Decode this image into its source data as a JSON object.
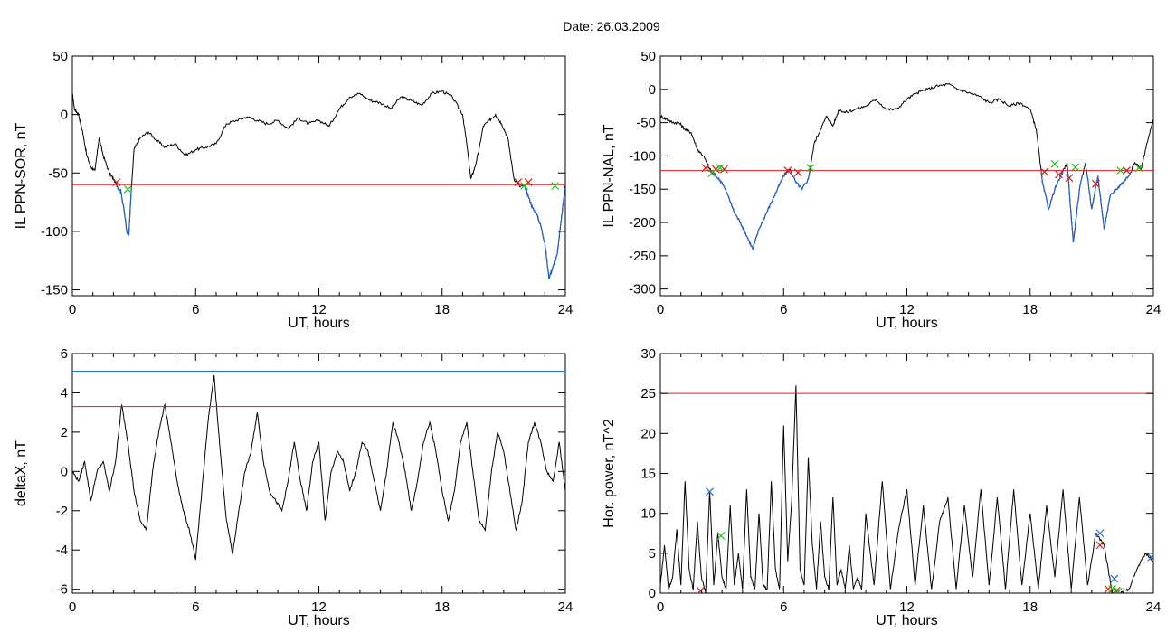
{
  "figure": {
    "title": "Date:  26.03.2009"
  },
  "chart_data": [
    {
      "id": "sor",
      "type": "line",
      "ylabel": "IL PPN-SOR, nT",
      "xlabel": "UT, hours",
      "xlim": [
        0,
        24
      ],
      "ylim": [
        -155,
        50
      ],
      "xticks": [
        0,
        6,
        12,
        18,
        24
      ],
      "yticks": [
        -150,
        -100,
        -50,
        0,
        50
      ],
      "thresholds": [
        {
          "value": -60,
          "color": "#e02020"
        }
      ],
      "colors": {
        "line": "#000000",
        "below": "#1f5fd0",
        "red_marks": "#d02020",
        "green_marks": "#20c020"
      },
      "series": [
        {
          "values_x": [
            0,
            0.1,
            0.3,
            0.5,
            0.7,
            0.9,
            1.1,
            1.3,
            1.5,
            1.8,
            2.0,
            2.2,
            2.35,
            2.5,
            2.65,
            2.75,
            2.85,
            3.0,
            3.3,
            3.7,
            4.1,
            4.5,
            5.0,
            5.5,
            6.0,
            6.5,
            7.0,
            7.5,
            8.0,
            8.5,
            9.0,
            9.5,
            10.0,
            10.5,
            11.0,
            11.5,
            12.0,
            12.5,
            13.0,
            13.5,
            14.0,
            14.5,
            15.0,
            15.5,
            16.0,
            16.5,
            17.0,
            17.5,
            18.0,
            18.5,
            19.0,
            19.2,
            19.4,
            19.6,
            19.8,
            20.0,
            20.3,
            20.6,
            20.9,
            21.2,
            21.5,
            21.8,
            22.0,
            22.2,
            22.4,
            22.6,
            22.8,
            23.0,
            23.2,
            23.4,
            23.6,
            23.8,
            24.0
          ],
          "values_y": [
            18,
            5,
            0,
            -15,
            -35,
            -45,
            -48,
            -20,
            -35,
            -50,
            -55,
            -62,
            -65,
            -80,
            -100,
            -103,
            -70,
            -30,
            -20,
            -15,
            -22,
            -28,
            -25,
            -35,
            -30,
            -28,
            -25,
            -8,
            -5,
            -2,
            -5,
            -8,
            -5,
            -12,
            -3,
            -8,
            -5,
            -10,
            5,
            15,
            18,
            12,
            10,
            5,
            15,
            12,
            8,
            18,
            20,
            15,
            0,
            -25,
            -55,
            -45,
            -30,
            -10,
            -5,
            0,
            -8,
            -20,
            -55,
            -62,
            -60,
            -70,
            -80,
            -85,
            -95,
            -110,
            -140,
            -130,
            -120,
            -90,
            -60
          ]
        }
      ],
      "markers": {
        "red_x": [
          [
            2.15,
            -58
          ],
          [
            21.7,
            -58
          ],
          [
            22.2,
            -58
          ]
        ],
        "green_x": [
          [
            2.7,
            -64
          ],
          [
            22.0,
            -61
          ],
          [
            23.5,
            -61
          ]
        ]
      }
    },
    {
      "id": "nal",
      "type": "line",
      "ylabel": "IL PPN-NAL, nT",
      "xlabel": "UT, hours",
      "xlim": [
        0,
        24
      ],
      "ylim": [
        -310,
        50
      ],
      "xticks": [
        0,
        6,
        12,
        18,
        24
      ],
      "yticks": [
        -300,
        -250,
        -200,
        -150,
        -100,
        -50,
        0,
        50
      ],
      "thresholds": [
        {
          "value": -122,
          "color": "#e02020"
        }
      ],
      "colors": {
        "line": "#000000",
        "below": "#1f5fd0",
        "red_marks": "#d02020",
        "green_marks": "#20c020"
      },
      "series": [
        {
          "values_x": [
            0,
            0.3,
            0.6,
            0.9,
            1.2,
            1.5,
            1.8,
            2.1,
            2.4,
            2.7,
            3.0,
            3.3,
            3.6,
            3.9,
            4.2,
            4.5,
            4.8,
            5.1,
            5.4,
            5.7,
            6.0,
            6.3,
            6.6,
            6.9,
            7.2,
            7.5,
            7.8,
            8.1,
            8.4,
            8.7,
            9.0,
            9.5,
            10.0,
            10.5,
            11.0,
            11.5,
            12.0,
            12.5,
            13.0,
            13.5,
            14.0,
            14.5,
            15.0,
            15.5,
            16.0,
            16.5,
            17.0,
            17.5,
            18.0,
            18.3,
            18.6,
            18.9,
            19.2,
            19.5,
            19.8,
            20.1,
            20.4,
            20.7,
            21.0,
            21.3,
            21.6,
            21.9,
            22.2,
            22.5,
            22.8,
            23.1,
            23.4,
            23.7,
            24.0
          ],
          "values_y": [
            -40,
            -45,
            -50,
            -50,
            -60,
            -65,
            -90,
            -100,
            -120,
            -130,
            -140,
            -160,
            -185,
            -200,
            -220,
            -240,
            -210,
            -190,
            -170,
            -150,
            -130,
            -120,
            -140,
            -150,
            -135,
            -80,
            -60,
            -40,
            -55,
            -30,
            -35,
            -30,
            -25,
            -15,
            -30,
            -30,
            -15,
            -5,
            0,
            5,
            8,
            0,
            -5,
            -10,
            -20,
            -15,
            -25,
            -20,
            -30,
            -60,
            -140,
            -180,
            -150,
            -130,
            -110,
            -230,
            -150,
            -110,
            -180,
            -130,
            -210,
            -160,
            -150,
            -140,
            -130,
            -110,
            -120,
            -80,
            -45
          ]
        }
      ],
      "markers": {
        "red_x": [
          [
            2.2,
            -118
          ],
          [
            2.7,
            -120
          ],
          [
            3.1,
            -120
          ],
          [
            6.2,
            -122
          ],
          [
            6.7,
            -125
          ],
          [
            18.7,
            -124
          ],
          [
            19.4,
            -128
          ],
          [
            19.9,
            -133
          ],
          [
            21.2,
            -142
          ],
          [
            22.7,
            -122
          ]
        ],
        "green_x": [
          [
            2.5,
            -126
          ],
          [
            2.9,
            -118
          ],
          [
            7.3,
            -118
          ],
          [
            19.2,
            -112
          ],
          [
            20.2,
            -117
          ],
          [
            22.4,
            -122
          ],
          [
            23.3,
            -118
          ]
        ]
      }
    },
    {
      "id": "deltax",
      "type": "line",
      "ylabel": "deltaX, nT",
      "xlabel": "UT, hours",
      "xlim": [
        0,
        24
      ],
      "ylim": [
        -6.2,
        6
      ],
      "xticks": [
        0,
        6,
        12,
        18,
        24
      ],
      "yticks": [
        -6,
        -4,
        -2,
        0,
        2,
        4,
        6
      ],
      "thresholds": [
        {
          "value": 5.1,
          "color": "#1f6fd0"
        },
        {
          "value": 3.3,
          "color": "#e02020"
        }
      ],
      "colors": {
        "line": "#000000"
      },
      "series": [
        {
          "values_x": [
            0,
            0.3,
            0.6,
            0.9,
            1.2,
            1.5,
            1.8,
            2.1,
            2.4,
            2.7,
            3.0,
            3.3,
            3.6,
            3.9,
            4.2,
            4.5,
            4.8,
            5.1,
            5.4,
            5.7,
            6.0,
            6.3,
            6.6,
            6.9,
            7.2,
            7.5,
            7.8,
            8.1,
            8.4,
            8.7,
            9.0,
            9.3,
            9.6,
            9.9,
            10.2,
            10.5,
            10.8,
            11.1,
            11.4,
            11.7,
            12.0,
            12.3,
            12.6,
            12.9,
            13.2,
            13.5,
            13.8,
            14.1,
            14.4,
            14.7,
            15.0,
            15.3,
            15.6,
            15.9,
            16.2,
            16.5,
            16.8,
            17.1,
            17.4,
            17.7,
            18.0,
            18.3,
            18.6,
            18.9,
            19.2,
            19.5,
            19.8,
            20.1,
            20.4,
            20.7,
            21.0,
            21.3,
            21.6,
            21.9,
            22.2,
            22.5,
            22.8,
            23.1,
            23.4,
            23.7,
            24.0
          ],
          "values_y": [
            0,
            -0.5,
            0.5,
            -1.5,
            0,
            0.5,
            -1,
            0.5,
            3.4,
            1.5,
            -1,
            -2.5,
            -3,
            0,
            2,
            3.4,
            1.5,
            -0.5,
            -2,
            -3,
            -4.5,
            -1,
            2.5,
            4.9,
            1,
            -2.5,
            -4.2,
            -2,
            0,
            1,
            3,
            0.5,
            -1,
            -1.5,
            -2,
            -0.5,
            1.5,
            -0.5,
            -2,
            0.5,
            1.5,
            -2.5,
            0,
            1,
            0.5,
            -1,
            0,
            1.5,
            1,
            -0.5,
            -2,
            0,
            2.5,
            1.5,
            0,
            -2,
            -0.5,
            1.5,
            2.5,
            1,
            -1,
            -2.5,
            -1,
            1.5,
            2.5,
            0,
            -2.5,
            -3,
            0,
            2,
            1,
            -1,
            -3,
            -1.5,
            1.5,
            2.5,
            1.5,
            0,
            -0.5,
            1.5,
            -1
          ]
        }
      ],
      "markers": {
        "red_x": [],
        "green_x": []
      }
    },
    {
      "id": "power",
      "type": "line",
      "ylabel": "Hor. power, nT^2",
      "xlabel": "UT, hours",
      "xlim": [
        0,
        24
      ],
      "ylim": [
        0,
        30
      ],
      "xticks": [
        0,
        6,
        12,
        18,
        24
      ],
      "yticks": [
        0,
        5,
        10,
        15,
        20,
        25,
        30
      ],
      "thresholds": [
        {
          "value": 25,
          "color": "#e02020"
        }
      ],
      "colors": {
        "line": "#000000",
        "red_marks": "#d02020",
        "green_marks": "#20c020",
        "blue_marks": "#1f6fd0"
      },
      "series": [
        {
          "values_x": [
            0,
            0.2,
            0.4,
            0.6,
            0.8,
            1.0,
            1.2,
            1.4,
            1.6,
            1.8,
            2.0,
            2.2,
            2.4,
            2.6,
            2.8,
            3.0,
            3.2,
            3.4,
            3.6,
            3.8,
            4.0,
            4.2,
            4.4,
            4.6,
            4.8,
            5.0,
            5.2,
            5.4,
            5.6,
            5.8,
            6.0,
            6.2,
            6.4,
            6.6,
            6.8,
            7.0,
            7.2,
            7.4,
            7.6,
            7.8,
            8.0,
            8.2,
            8.4,
            8.6,
            8.8,
            9.0,
            9.2,
            9.4,
            9.6,
            9.8,
            10.0,
            10.4,
            10.8,
            11.2,
            11.6,
            12.0,
            12.4,
            12.8,
            13.2,
            13.6,
            14.0,
            14.4,
            14.8,
            15.2,
            15.6,
            16.0,
            16.4,
            16.8,
            17.2,
            17.6,
            18.0,
            18.4,
            18.8,
            19.2,
            19.6,
            20.0,
            20.4,
            20.8,
            21.2,
            21.6,
            22.0,
            22.4,
            22.8,
            23.2,
            23.6,
            24.0
          ],
          "values_y": [
            1,
            6,
            0.5,
            2,
            8,
            1,
            14,
            3,
            0.5,
            9,
            2,
            0,
            12.8,
            1,
            7.5,
            2,
            0.5,
            11,
            1,
            5,
            0.5,
            13,
            2,
            0.5,
            10,
            1,
            0.5,
            14,
            3,
            0.5,
            21,
            4,
            12,
            26,
            3,
            1,
            17,
            6,
            0.5,
            9,
            2,
            0.5,
            12,
            1,
            3,
            0.5,
            6,
            0.5,
            2,
            0.5,
            10,
            1,
            14,
            0.5,
            8,
            13,
            1,
            11,
            0.5,
            9,
            12,
            0.5,
            11,
            2,
            13,
            1,
            12,
            0.5,
            13,
            1,
            10,
            0.5,
            11,
            2,
            13,
            0.5,
            12,
            1,
            7.5,
            6,
            0,
            0,
            0.5,
            3,
            5,
            4
          ]
        }
      ],
      "markers": {
        "red_x": [
          [
            1.95,
            0.3
          ],
          [
            21.4,
            6
          ],
          [
            21.8,
            0.5
          ],
          [
            22.2,
            0.3
          ]
        ],
        "green_x": [
          [
            2.95,
            7.2
          ],
          [
            22.0,
            0.5
          ],
          [
            22.3,
            0.2
          ]
        ],
        "blue_x": [
          [
            2.4,
            12.7
          ],
          [
            21.4,
            7.5
          ],
          [
            22.1,
            1.8
          ],
          [
            23.9,
            4.5
          ]
        ]
      }
    }
  ]
}
